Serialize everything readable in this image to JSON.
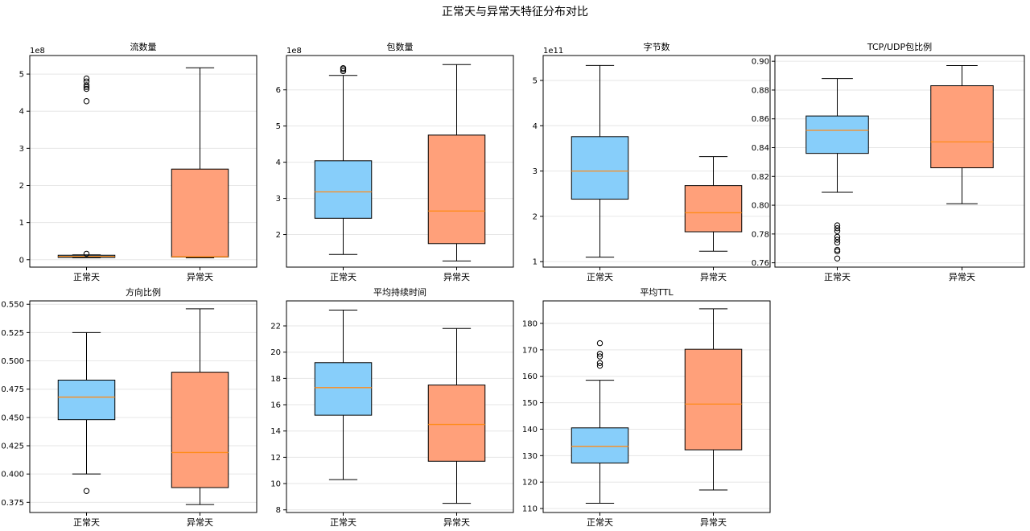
{
  "suptitle": "正常天与异常天特征分布对比",
  "colors": {
    "normal": "#87cefa",
    "abnormal": "#ffa07a",
    "median": "#ff8c1a",
    "grid": "#e6e6e6"
  },
  "chart_data": [
    {
      "type": "box",
      "title": "流数量",
      "offset_label": "1e8",
      "categories": [
        "正常天",
        "异常天"
      ],
      "ylim": [
        -0.2,
        5.5
      ],
      "yticks": [
        0,
        1,
        2,
        3,
        4,
        5
      ],
      "boxes": [
        {
          "whislo": 0.05,
          "q1": 0.06,
          "med": 0.09,
          "q3": 0.12,
          "whishi": 0.13,
          "fliers": [
            0.16,
            4.27,
            4.6,
            4.65,
            4.7,
            4.8,
            4.88
          ]
        },
        {
          "whislo": 0.05,
          "q1": 0.07,
          "med": 0.08,
          "q3": 2.44,
          "whishi": 5.17,
          "fliers": []
        }
      ]
    },
    {
      "type": "box",
      "title": "包数量",
      "offset_label": "1e8",
      "categories": [
        "正常天",
        "异常天"
      ],
      "ylim": [
        1.1,
        6.95
      ],
      "yticks": [
        2,
        3,
        4,
        5,
        6
      ],
      "boxes": [
        {
          "whislo": 1.45,
          "q1": 2.45,
          "med": 3.18,
          "q3": 4.04,
          "whishi": 6.4,
          "fliers": [
            6.52,
            6.57,
            6.6
          ]
        },
        {
          "whislo": 1.27,
          "q1": 1.75,
          "med": 2.65,
          "q3": 4.75,
          "whishi": 6.7,
          "fliers": []
        }
      ]
    },
    {
      "type": "box",
      "title": "字节数",
      "offset_label": "1e11",
      "categories": [
        "正常天",
        "异常天"
      ],
      "ylim": [
        0.88,
        5.55
      ],
      "yticks": [
        1,
        2,
        3,
        4,
        5
      ],
      "boxes": [
        {
          "whislo": 1.1,
          "q1": 2.38,
          "med": 3.0,
          "q3": 3.76,
          "whishi": 5.33,
          "fliers": []
        },
        {
          "whislo": 1.23,
          "q1": 1.66,
          "med": 2.08,
          "q3": 2.68,
          "whishi": 3.32,
          "fliers": []
        }
      ]
    },
    {
      "type": "box",
      "title": "TCP/UDP包比例",
      "offset_label": "",
      "categories": [
        "正常天",
        "异常天"
      ],
      "ylim": [
        0.757,
        0.904
      ],
      "yticks": [
        0.76,
        0.78,
        0.8,
        0.82,
        0.84,
        0.86,
        0.88,
        0.9
      ],
      "boxes": [
        {
          "whislo": 0.809,
          "q1": 0.836,
          "med": 0.852,
          "q3": 0.862,
          "whishi": 0.888,
          "fliers": [
            0.763,
            0.768,
            0.769,
            0.774,
            0.776,
            0.778,
            0.782,
            0.784,
            0.786
          ]
        },
        {
          "whislo": 0.801,
          "q1": 0.826,
          "med": 0.844,
          "q3": 0.883,
          "whishi": 0.897,
          "fliers": []
        }
      ]
    },
    {
      "type": "box",
      "title": "方向比例",
      "offset_label": "",
      "categories": [
        "正常天",
        "异常天"
      ],
      "ylim": [
        0.366,
        0.553
      ],
      "yticks": [
        0.375,
        0.4,
        0.425,
        0.45,
        0.475,
        0.5,
        0.525,
        0.55
      ],
      "boxes": [
        {
          "whislo": 0.4,
          "q1": 0.448,
          "med": 0.468,
          "q3": 0.483,
          "whishi": 0.525,
          "fliers": [
            0.385
          ]
        },
        {
          "whislo": 0.373,
          "q1": 0.388,
          "med": 0.419,
          "q3": 0.49,
          "whishi": 0.546,
          "fliers": []
        }
      ]
    },
    {
      "type": "box",
      "title": "平均持续时间",
      "offset_label": "",
      "categories": [
        "正常天",
        "异常天"
      ],
      "ylim": [
        7.8,
        23.9
      ],
      "yticks": [
        8,
        10,
        12,
        14,
        16,
        18,
        20,
        22
      ],
      "boxes": [
        {
          "whislo": 10.3,
          "q1": 15.2,
          "med": 17.3,
          "q3": 19.2,
          "whishi": 23.2,
          "fliers": []
        },
        {
          "whislo": 8.5,
          "q1": 11.7,
          "med": 14.5,
          "q3": 17.5,
          "whishi": 21.8,
          "fliers": []
        }
      ]
    },
    {
      "type": "box",
      "title": "平均TTL",
      "offset_label": "",
      "categories": [
        "正常天",
        "异常天"
      ],
      "ylim": [
        108.5,
        188.5
      ],
      "yticks": [
        110,
        120,
        130,
        140,
        150,
        160,
        170,
        180
      ],
      "boxes": [
        {
          "whislo": 112,
          "q1": 127.2,
          "med": 133.5,
          "q3": 140.5,
          "whishi": 158.5,
          "fliers": [
            164,
            165,
            167.5,
            168.5,
            172.5
          ]
        },
        {
          "whislo": 117,
          "q1": 132.2,
          "med": 149.5,
          "q3": 170.2,
          "whishi": 185.5,
          "fliers": []
        }
      ]
    }
  ]
}
